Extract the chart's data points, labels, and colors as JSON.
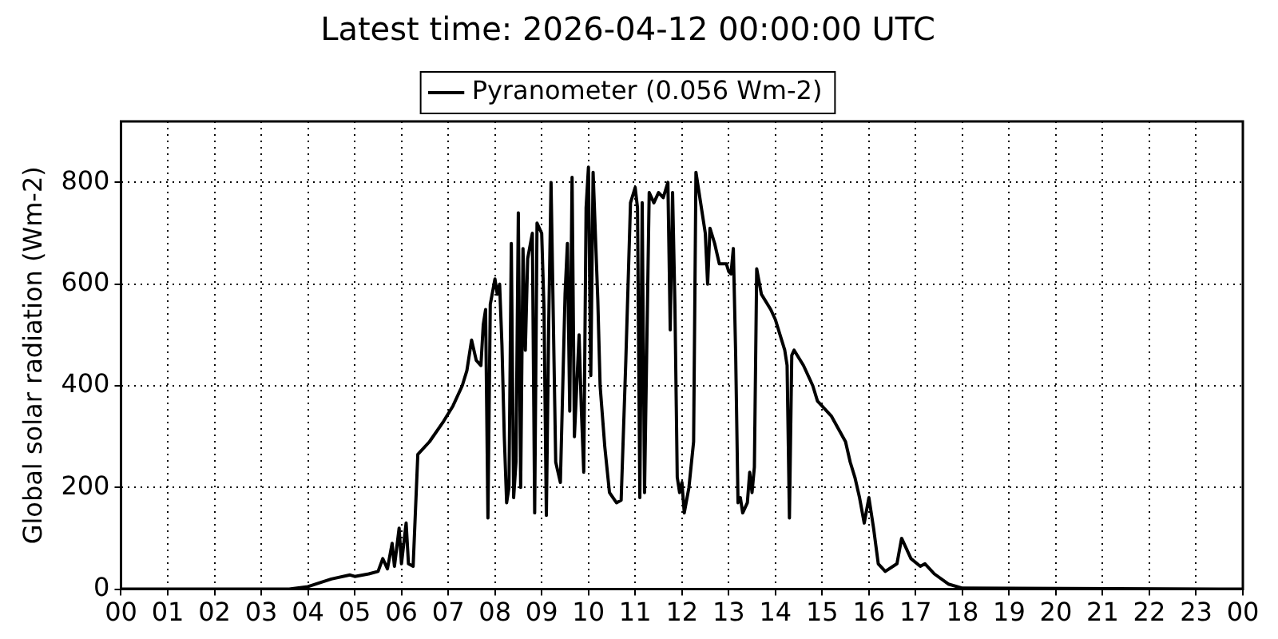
{
  "chart_data": {
    "type": "line",
    "title": "Latest time: 2026-04-12 00:00:00 UTC",
    "ylabel": "Global solar radiation (Wm-2)",
    "legend": "top",
    "grid": true,
    "marker": "none",
    "line_style": "solid",
    "xlim": [
      0,
      24
    ],
    "xticks": [
      {
        "value": 0,
        "label": "00"
      },
      {
        "value": 1,
        "label": "01"
      },
      {
        "value": 2,
        "label": "02"
      },
      {
        "value": 3,
        "label": "03"
      },
      {
        "value": 4,
        "label": "04"
      },
      {
        "value": 5,
        "label": "05"
      },
      {
        "value": 6,
        "label": "06"
      },
      {
        "value": 7,
        "label": "07"
      },
      {
        "value": 8,
        "label": "08"
      },
      {
        "value": 9,
        "label": "09"
      },
      {
        "value": 10,
        "label": "10"
      },
      {
        "value": 11,
        "label": "11"
      },
      {
        "value": 12,
        "label": "12"
      },
      {
        "value": 13,
        "label": "13"
      },
      {
        "value": 14,
        "label": "14"
      },
      {
        "value": 15,
        "label": "15"
      },
      {
        "value": 16,
        "label": "16"
      },
      {
        "value": 17,
        "label": "17"
      },
      {
        "value": 18,
        "label": "18"
      },
      {
        "value": 19,
        "label": "19"
      },
      {
        "value": 20,
        "label": "20"
      },
      {
        "value": 21,
        "label": "21"
      },
      {
        "value": 22,
        "label": "22"
      },
      {
        "value": 23,
        "label": "23"
      },
      {
        "value": 24,
        "label": "00"
      }
    ],
    "ylim": [
      0,
      920
    ],
    "yticks": [
      0,
      200,
      400,
      600,
      800
    ],
    "x": [
      0,
      3.6,
      4.0,
      4.5,
      4.9,
      5.0,
      5.3,
      5.5,
      5.6,
      5.7,
      5.8,
      5.85,
      5.95,
      6.0,
      6.1,
      6.15,
      6.25,
      6.35,
      6.6,
      6.9,
      7.1,
      7.3,
      7.4,
      7.5,
      7.6,
      7.7,
      7.75,
      7.8,
      7.85,
      7.9,
      8.0,
      8.05,
      8.1,
      8.15,
      8.2,
      8.25,
      8.3,
      8.35,
      8.4,
      8.45,
      8.5,
      8.55,
      8.6,
      8.65,
      8.7,
      8.8,
      8.85,
      8.9,
      9.0,
      9.05,
      9.1,
      9.15,
      9.2,
      9.3,
      9.4,
      9.5,
      9.55,
      9.6,
      9.65,
      9.7,
      9.8,
      9.85,
      9.9,
      9.95,
      10.0,
      10.05,
      10.1,
      10.2,
      10.25,
      10.35,
      10.45,
      10.6,
      10.7,
      10.8,
      10.9,
      11.0,
      11.05,
      11.1,
      11.15,
      11.2,
      11.3,
      11.4,
      11.5,
      11.6,
      11.7,
      11.75,
      11.8,
      11.85,
      11.9,
      11.95,
      12.0,
      12.05,
      12.15,
      12.25,
      12.3,
      12.4,
      12.5,
      12.55,
      12.6,
      12.7,
      12.8,
      12.95,
      13.0,
      13.05,
      13.1,
      13.15,
      13.2,
      13.25,
      13.3,
      13.4,
      13.45,
      13.5,
      13.55,
      13.6,
      13.7,
      13.9,
      14.0,
      14.1,
      14.2,
      14.25,
      14.3,
      14.35,
      14.4,
      14.6,
      14.8,
      14.9,
      15.0,
      15.2,
      15.5,
      15.6,
      15.7,
      15.8,
      15.9,
      16.0,
      16.1,
      16.2,
      16.35,
      16.6,
      16.7,
      16.8,
      16.9,
      17.1,
      17.2,
      17.4,
      17.7,
      18.0,
      24
    ],
    "series": [
      {
        "name": "Pyranometer (0.056 Wm-2)",
        "color": "#000000",
        "values": [
          0,
          0,
          5,
          20,
          28,
          25,
          30,
          35,
          60,
          40,
          90,
          45,
          120,
          50,
          130,
          50,
          45,
          265,
          290,
          330,
          360,
          400,
          430,
          490,
          450,
          440,
          520,
          550,
          140,
          560,
          610,
          580,
          600,
          480,
          300,
          170,
          200,
          680,
          180,
          250,
          740,
          200,
          670,
          470,
          650,
          700,
          150,
          720,
          700,
          550,
          145,
          520,
          800,
          250,
          210,
          580,
          680,
          350,
          810,
          300,
          500,
          350,
          230,
          750,
          830,
          420,
          820,
          570,
          400,
          280,
          190,
          170,
          175,
          450,
          760,
          790,
          750,
          180,
          760,
          190,
          780,
          760,
          780,
          770,
          800,
          510,
          780,
          560,
          220,
          190,
          210,
          150,
          200,
          290,
          820,
          760,
          700,
          600,
          710,
          680,
          640,
          640,
          625,
          620,
          670,
          460,
          170,
          180,
          150,
          170,
          230,
          190,
          240,
          630,
          580,
          550,
          530,
          500,
          470,
          440,
          140,
          460,
          470,
          440,
          400,
          370,
          360,
          340,
          290,
          250,
          220,
          180,
          130,
          180,
          120,
          50,
          35,
          50,
          100,
          80,
          60,
          45,
          50,
          30,
          10,
          2,
          0
        ]
      }
    ]
  }
}
